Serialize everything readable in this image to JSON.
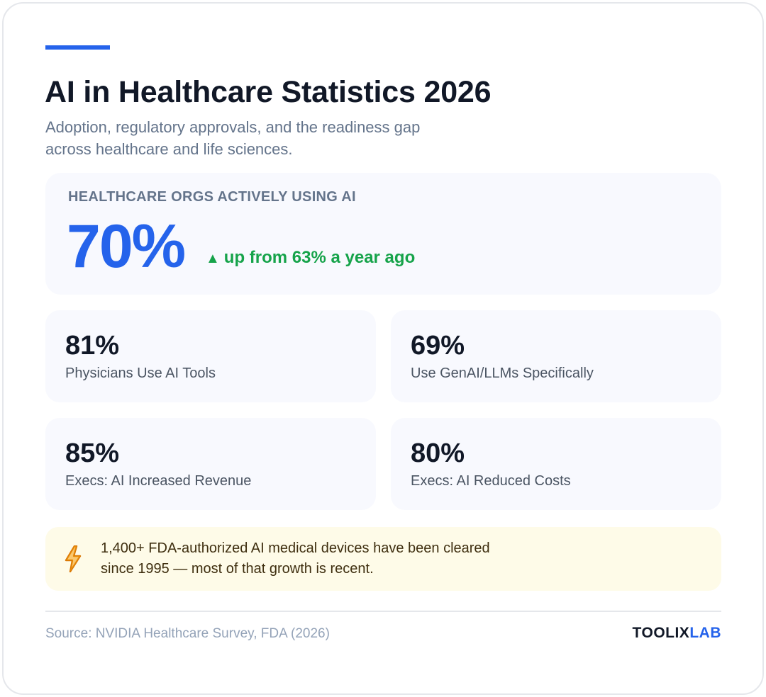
{
  "title": "AI in Healthcare Statistics 2026",
  "subtitle": "Adoption, regulatory approvals, and the readiness gap across healthcare and life sciences.",
  "hero": {
    "label": "HEALTHCARE ORGS ACTIVELY USING AI",
    "value": "70%",
    "delta": "up from 63% a year ago",
    "delta_arrow": "▲"
  },
  "stats": [
    {
      "value": "81%",
      "label": "Physicians Use AI Tools"
    },
    {
      "value": "69%",
      "label": "Use GenAI/LLMs Specifically"
    },
    {
      "value": "85%",
      "label": "Execs: AI Increased Revenue"
    },
    {
      "value": "80%",
      "label": "Execs: AI Reduced Costs"
    }
  ],
  "note": {
    "icon": "lightning-bolt-icon",
    "text": "1,400+ FDA-authorized AI medical devices have been cleared since 1995 — most of that growth is recent."
  },
  "footer": {
    "source": "Source: NVIDIA Healthcare Survey, FDA (2026)",
    "brand_part1": "TOOLIX",
    "brand_part2": "LAB"
  },
  "colors": {
    "accent": "#2563eb",
    "positive": "#16a34a",
    "note_bg": "#fefbe8",
    "icon": "#d97706"
  }
}
